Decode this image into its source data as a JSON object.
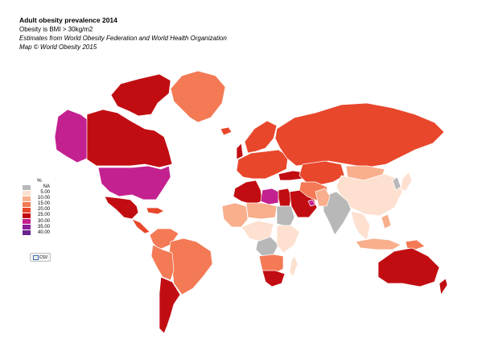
{
  "header": {
    "title": "Adult obesity prevalence 2014",
    "definition": "Obesity is BMI > 30kg/m2",
    "source": "Estimates from World Obesity Federation and World Health Organization",
    "copyright": "Map © World Obesity 2015"
  },
  "legend": {
    "title": "%",
    "items": [
      {
        "label": "NA",
        "color": "#b8b8b8"
      },
      {
        "label": "5.00",
        "color": "#fde0cf"
      },
      {
        "label": "10.00",
        "color": "#f9ae8c"
      },
      {
        "label": "15.00",
        "color": "#f37a55"
      },
      {
        "label": "20.00",
        "color": "#e8472c"
      },
      {
        "label": "25.00",
        "color": "#c10d12"
      },
      {
        "label": "30.00",
        "color": "#c3218f"
      },
      {
        "label": "35.00",
        "color": "#8c1f9b"
      },
      {
        "label": "40.00",
        "color": "#6a238c"
      }
    ]
  },
  "export_button": {
    "label": "CSV"
  },
  "regions": [
    {
      "name": "alaska",
      "fill": "#c3218f"
    },
    {
      "name": "canada",
      "fill": "#c10d12"
    },
    {
      "name": "arctic-islands",
      "fill": "#c10d12"
    },
    {
      "name": "greenland",
      "fill": "#f37a55"
    },
    {
      "name": "usa",
      "fill": "#c3218f"
    },
    {
      "name": "mexico",
      "fill": "#c10d12"
    },
    {
      "name": "central-america",
      "fill": "#e8472c"
    },
    {
      "name": "caribbean",
      "fill": "#e8472c"
    },
    {
      "name": "colombia-venezuela",
      "fill": "#f37a55"
    },
    {
      "name": "brazil",
      "fill": "#f37a55"
    },
    {
      "name": "peru-bolivia",
      "fill": "#f37a55"
    },
    {
      "name": "argentina-chile",
      "fill": "#c10d12"
    },
    {
      "name": "iceland",
      "fill": "#e8472c"
    },
    {
      "name": "uk",
      "fill": "#c10d12"
    },
    {
      "name": "scandinavia",
      "fill": "#e8472c"
    },
    {
      "name": "europe",
      "fill": "#e8472c"
    },
    {
      "name": "russia",
      "fill": "#e8472c"
    },
    {
      "name": "turkey",
      "fill": "#c10d12"
    },
    {
      "name": "central-asia",
      "fill": "#e8472c"
    },
    {
      "name": "north-africa-west",
      "fill": "#c10d12"
    },
    {
      "name": "libya",
      "fill": "#c3218f"
    },
    {
      "name": "egypt",
      "fill": "#c10d12"
    },
    {
      "name": "arabia",
      "fill": "#c10d12"
    },
    {
      "name": "qatar",
      "fill": "#c3218f"
    },
    {
      "name": "iran",
      "fill": "#f37a55"
    },
    {
      "name": "west-africa",
      "fill": "#f9ae8c"
    },
    {
      "name": "sahel",
      "fill": "#f9ae8c"
    },
    {
      "name": "sudan",
      "fill": "#b8b8b8"
    },
    {
      "name": "central-africa",
      "fill": "#fde0cf"
    },
    {
      "name": "congo",
      "fill": "#b8b8b8"
    },
    {
      "name": "east-africa",
      "fill": "#fde0cf"
    },
    {
      "name": "southern-africa",
      "fill": "#f37a55"
    },
    {
      "name": "south-africa",
      "fill": "#c10d12"
    },
    {
      "name": "madagascar",
      "fill": "#fde0cf"
    },
    {
      "name": "mongolia",
      "fill": "#f9ae8c"
    },
    {
      "name": "china",
      "fill": "#fde0cf"
    },
    {
      "name": "india",
      "fill": "#b8b8b8"
    },
    {
      "name": "pakistan",
      "fill": "#f9ae8c"
    },
    {
      "name": "southeast-asia",
      "fill": "#fde0cf"
    },
    {
      "name": "indonesia",
      "fill": "#f9ae8c"
    },
    {
      "name": "japan",
      "fill": "#fde0cf"
    },
    {
      "name": "korea",
      "fill": "#b8b8b8"
    },
    {
      "name": "philippines",
      "fill": "#f9ae8c"
    },
    {
      "name": "papua",
      "fill": "#f37a55"
    },
    {
      "name": "australia",
      "fill": "#c10d12"
    },
    {
      "name": "new-zealand",
      "fill": "#c10d12"
    }
  ]
}
